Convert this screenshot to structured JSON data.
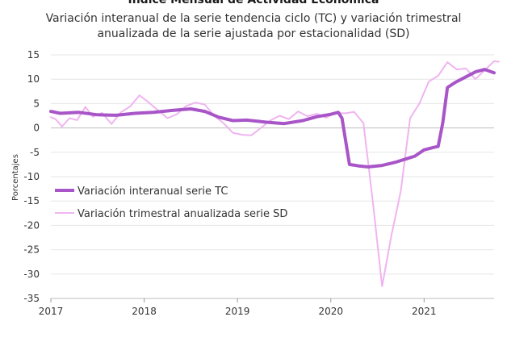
{
  "chart_data": {
    "type": "line",
    "title": "Índice Mensual de Actividad Económica",
    "subtitle_lines": [
      "Variación interanual de la serie tendencia ciclo (TC) y variación trimestral",
      "anualizada de la serie ajustada por estacionalidad (SD)"
    ],
    "ylabel": "Porcentajes",
    "xlabel": "",
    "ylim": [
      -35,
      15
    ],
    "yticks": [
      "15",
      "10",
      "5",
      "0",
      "-5",
      "-10",
      "-15",
      "-20",
      "-25",
      "-30",
      "-35"
    ],
    "xlim": [
      2017,
      2021.75
    ],
    "xticks": [
      "2017",
      "2018",
      "2019",
      "2020",
      "2021"
    ],
    "grid": "horizontal",
    "legend_position": "left",
    "series": [
      {
        "name": "Variación interanual serie TC",
        "color": "#a855c8",
        "points": [
          [
            2017.0,
            3.4
          ],
          [
            2017.1,
            3.0
          ],
          [
            2017.3,
            3.2
          ],
          [
            2017.5,
            2.7
          ],
          [
            2017.7,
            2.6
          ],
          [
            2017.9,
            3.0
          ],
          [
            2018.1,
            3.2
          ],
          [
            2018.3,
            3.6
          ],
          [
            2018.5,
            3.9
          ],
          [
            2018.65,
            3.4
          ],
          [
            2018.8,
            2.2
          ],
          [
            2018.95,
            1.5
          ],
          [
            2019.1,
            1.6
          ],
          [
            2019.3,
            1.2
          ],
          [
            2019.5,
            0.9
          ],
          [
            2019.7,
            1.5
          ],
          [
            2019.85,
            2.3
          ],
          [
            2020.0,
            2.8
          ],
          [
            2020.08,
            3.2
          ],
          [
            2020.12,
            2.0
          ],
          [
            2020.2,
            -7.5
          ],
          [
            2020.3,
            -7.8
          ],
          [
            2020.4,
            -8.0
          ],
          [
            2020.55,
            -7.7
          ],
          [
            2020.7,
            -7.0
          ],
          [
            2020.9,
            -5.8
          ],
          [
            2021.0,
            -4.5
          ],
          [
            2021.1,
            -4.0
          ],
          [
            2021.15,
            -3.8
          ],
          [
            2021.2,
            1.0
          ],
          [
            2021.25,
            8.3
          ],
          [
            2021.33,
            9.3
          ],
          [
            2021.45,
            10.5
          ],
          [
            2021.55,
            11.5
          ],
          [
            2021.65,
            12.0
          ],
          [
            2021.75,
            11.3
          ]
        ]
      },
      {
        "name": "Variación trimestral anualizada serie SD",
        "color": "#f0b4f0",
        "points": [
          [
            2017.0,
            2.2
          ],
          [
            2017.05,
            1.8
          ],
          [
            2017.12,
            0.3
          ],
          [
            2017.2,
            2.0
          ],
          [
            2017.28,
            1.6
          ],
          [
            2017.37,
            4.3
          ],
          [
            2017.45,
            2.3
          ],
          [
            2017.55,
            3.1
          ],
          [
            2017.65,
            0.8
          ],
          [
            2017.75,
            3.2
          ],
          [
            2017.85,
            4.4
          ],
          [
            2017.95,
            6.7
          ],
          [
            2018.05,
            5.2
          ],
          [
            2018.15,
            3.6
          ],
          [
            2018.25,
            2.0
          ],
          [
            2018.35,
            2.8
          ],
          [
            2018.45,
            4.5
          ],
          [
            2018.55,
            5.2
          ],
          [
            2018.65,
            4.8
          ],
          [
            2018.75,
            2.5
          ],
          [
            2018.85,
            1.0
          ],
          [
            2018.95,
            -1.0
          ],
          [
            2019.05,
            -1.4
          ],
          [
            2019.15,
            -1.5
          ],
          [
            2019.25,
            0.0
          ],
          [
            2019.35,
            1.5
          ],
          [
            2019.45,
            2.5
          ],
          [
            2019.55,
            1.8
          ],
          [
            2019.65,
            3.4
          ],
          [
            2019.75,
            2.4
          ],
          [
            2019.85,
            2.9
          ],
          [
            2019.95,
            2.1
          ],
          [
            2020.05,
            3.1
          ],
          [
            2020.15,
            3.0
          ],
          [
            2020.25,
            3.3
          ],
          [
            2020.35,
            1.0
          ],
          [
            2020.45,
            -15.0
          ],
          [
            2020.55,
            -32.5
          ],
          [
            2020.65,
            -22.0
          ],
          [
            2020.75,
            -13.0
          ],
          [
            2020.85,
            2.0
          ],
          [
            2020.95,
            5.0
          ],
          [
            2021.05,
            9.5
          ],
          [
            2021.15,
            10.7
          ],
          [
            2021.25,
            13.5
          ],
          [
            2021.35,
            12.0
          ],
          [
            2021.45,
            12.2
          ],
          [
            2021.55,
            10.0
          ],
          [
            2021.62,
            11.3
          ],
          [
            2021.75,
            13.7
          ],
          [
            2021.8,
            13.6
          ]
        ]
      }
    ]
  }
}
